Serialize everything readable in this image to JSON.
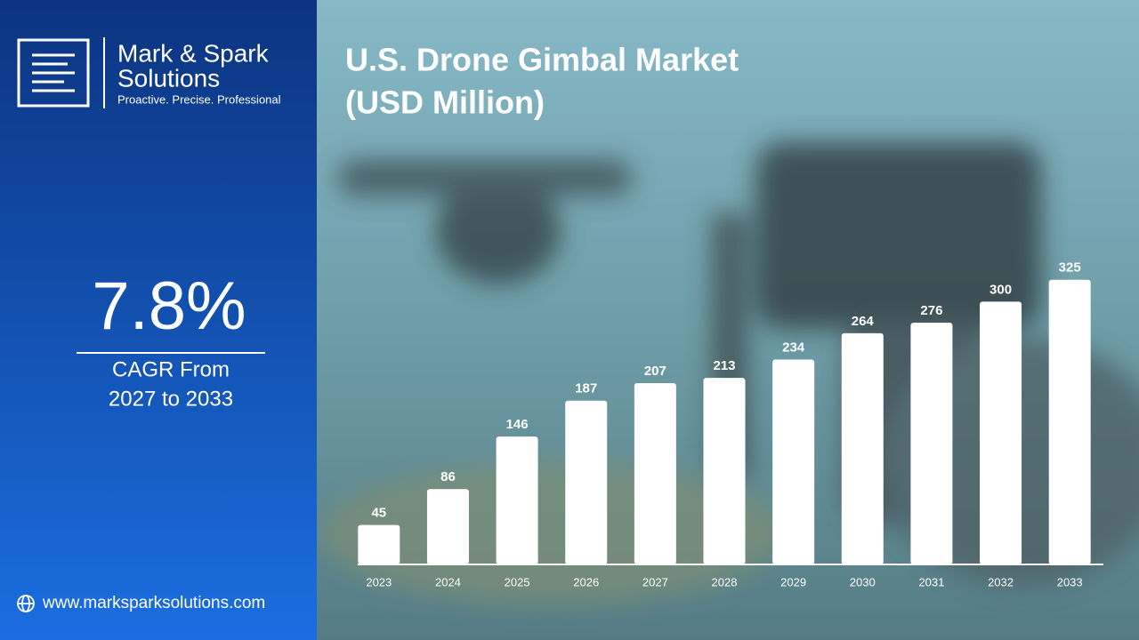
{
  "brand": {
    "name_line1": "Mark & Spark",
    "name_line2": "Solutions",
    "tagline": "Proactive. Precise. Professional"
  },
  "highlight": {
    "value": "7.8%",
    "label_line1": "CAGR From",
    "label_line2": "2027 to 2033"
  },
  "website": "www.marksparksolutions.com",
  "chart_data": {
    "type": "bar",
    "title": "U.S. Drone Gimbal Market",
    "subtitle": "(USD Million)",
    "categories": [
      "2023",
      "2024",
      "2025",
      "2026",
      "2027",
      "2028",
      "2029",
      "2030",
      "2031",
      "2032",
      "2033"
    ],
    "values": [
      45,
      86,
      146,
      187,
      207,
      213,
      234,
      264,
      276,
      300,
      325
    ],
    "color": "#ffffff",
    "ylim": [
      0,
      340
    ]
  }
}
